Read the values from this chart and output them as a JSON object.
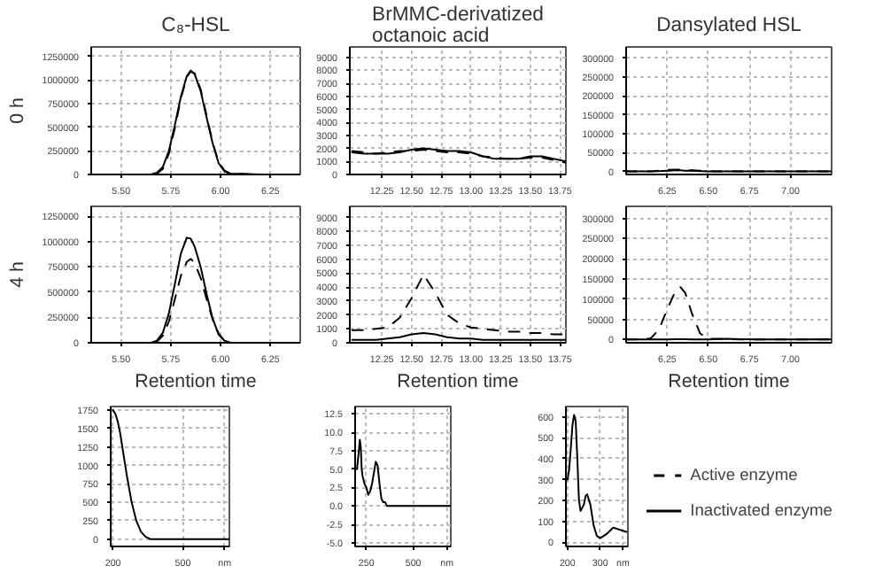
{
  "chart_data": [
    {
      "type": "line",
      "title": "C₈-HSL",
      "ylabel": "0 h",
      "xlim": [
        5.35,
        6.4
      ],
      "ylim": [
        0,
        1350000
      ],
      "xticks": [
        {
          "value": 5.5,
          "label": "5.50"
        },
        5.75,
        {
          "value": 6.0,
          "label": "6.00"
        },
        6.25
      ],
      "yticks": [
        0,
        250000,
        500000,
        750000,
        1000000,
        1250000
      ],
      "grid": true,
      "x": [
        5.35,
        5.5,
        5.65,
        5.68,
        5.71,
        5.74,
        5.77,
        5.8,
        5.83,
        5.85,
        5.87,
        5.9,
        5.93,
        5.96,
        5.99,
        6.02,
        6.05,
        6.2,
        6.4
      ],
      "series": [
        {
          "color": "#000000",
          "line_style": "dashed",
          "values": [
            0,
            0,
            0,
            10000,
            60000,
            220000,
            490000,
            800000,
            1030000,
            1090000,
            1070000,
            900000,
            620000,
            340000,
            130000,
            40000,
            10000,
            0,
            0
          ]
        },
        {
          "color": "#000000",
          "line_style": "solid",
          "values": [
            0,
            0,
            0,
            20000,
            80000,
            250000,
            520000,
            820000,
            1040000,
            1100000,
            1060000,
            880000,
            600000,
            330000,
            120000,
            30000,
            10000,
            0,
            0
          ]
        }
      ]
    },
    {
      "type": "line",
      "title": "BrMMC-derivatized octanoic acid",
      "xlim": [
        11.98,
        13.8
      ],
      "ylim": [
        0,
        9800
      ],
      "xticks": [
        12.25,
        {
          "value": 12.5,
          "label": "12.50"
        },
        12.75,
        {
          "value": 13.0,
          "label": "13.00"
        },
        13.25,
        {
          "value": 13.5,
          "label": "13.50"
        },
        13.75
      ],
      "yticks": [
        0,
        1000,
        2000,
        3000,
        4000,
        5000,
        6000,
        7000,
        8000,
        9000
      ],
      "grid": true,
      "x": [
        12.0,
        12.1,
        12.2,
        12.3,
        12.4,
        12.5,
        12.6,
        12.7,
        12.8,
        12.9,
        13.0,
        13.1,
        13.2,
        13.3,
        13.4,
        13.5,
        13.6,
        13.7,
        13.8
      ],
      "series": [
        {
          "color": "#000000",
          "line_style": "dashed",
          "values": [
            1800,
            1700,
            1600,
            1700,
            1800,
            1800,
            1900,
            1800,
            1700,
            1700,
            1600,
            1400,
            1300,
            1200,
            1200,
            1300,
            1300,
            1100,
            900
          ]
        },
        {
          "color": "#000000",
          "line_style": "solid",
          "values": [
            1700,
            1600,
            1600,
            1600,
            1700,
            1900,
            2000,
            1900,
            1800,
            1800,
            1700,
            1400,
            1200,
            1200,
            1200,
            1400,
            1400,
            1200,
            1000
          ]
        }
      ]
    },
    {
      "type": "line",
      "title": "Dansylated HSL",
      "xlim": [
        6.0,
        7.25
      ],
      "ylim": [
        -8000,
        330000
      ],
      "xticks": [
        6.25,
        {
          "value": 6.5,
          "label": "6.50"
        },
        6.75,
        {
          "value": 7.0,
          "label": "7.00"
        }
      ],
      "yticks": [
        0,
        50000,
        100000,
        150000,
        200000,
        250000,
        300000
      ],
      "grid": true,
      "x": [
        6.0,
        6.1,
        6.15,
        6.2,
        6.25,
        6.3,
        6.33,
        6.36,
        6.4,
        6.45,
        6.5,
        6.6,
        6.7,
        6.8,
        6.9,
        7.0,
        7.1,
        7.2,
        7.25
      ],
      "series": [
        {
          "color": "#000000",
          "line_style": "dashed",
          "values": [
            0,
            0,
            0,
            2000,
            4000,
            5000,
            5000,
            4000,
            3000,
            2000,
            0,
            0,
            0,
            0,
            0,
            0,
            0,
            0,
            0
          ]
        },
        {
          "color": "#000000",
          "line_style": "solid",
          "values": [
            0,
            0,
            0,
            1000,
            2000,
            3000,
            3000,
            2000,
            2000,
            1000,
            0,
            0,
            0,
            0,
            0,
            0,
            0,
            0,
            0
          ]
        }
      ]
    },
    {
      "type": "line",
      "ylabel": "4 h",
      "xlabel": "Retention time",
      "xlim": [
        5.35,
        6.4
      ],
      "ylim": [
        0,
        1350000
      ],
      "xticks": [
        {
          "value": 5.5,
          "label": "5.50"
        },
        5.75,
        {
          "value": 6.0,
          "label": "6.00"
        },
        6.25
      ],
      "yticks": [
        0,
        250000,
        500000,
        750000,
        1000000,
        1250000
      ],
      "grid": true,
      "x": [
        5.35,
        5.5,
        5.65,
        5.68,
        5.71,
        5.74,
        5.77,
        5.8,
        5.83,
        5.85,
        5.87,
        5.9,
        5.93,
        5.96,
        5.99,
        6.02,
        6.05,
        6.2,
        6.4
      ],
      "series": [
        {
          "color": "#000000",
          "line_style": "dashed",
          "values": [
            0,
            0,
            0,
            10000,
            70000,
            210000,
            430000,
            660000,
            800000,
            830000,
            790000,
            640000,
            430000,
            230000,
            90000,
            20000,
            0,
            0,
            0
          ]
        },
        {
          "color": "#000000",
          "line_style": "solid",
          "values": [
            0,
            0,
            0,
            20000,
            100000,
            290000,
            580000,
            880000,
            1040000,
            1030000,
            950000,
            750000,
            480000,
            240000,
            80000,
            20000,
            0,
            0,
            0
          ]
        }
      ]
    },
    {
      "type": "line",
      "xlabel": "Retention time",
      "xlim": [
        11.98,
        13.8
      ],
      "ylim": [
        0,
        9800
      ],
      "xticks": [
        12.25,
        {
          "value": 12.5,
          "label": "12.50"
        },
        12.75,
        {
          "value": 13.0,
          "label": "13.00"
        },
        13.25,
        {
          "value": 13.5,
          "label": "13.50"
        },
        13.75
      ],
      "yticks": [
        0,
        1000,
        2000,
        3000,
        4000,
        5000,
        6000,
        7000,
        8000,
        9000
      ],
      "grid": true,
      "x": [
        12.0,
        12.1,
        12.2,
        12.3,
        12.4,
        12.5,
        12.6,
        12.7,
        12.8,
        12.9,
        13.0,
        13.1,
        13.2,
        13.3,
        13.4,
        13.5,
        13.6,
        13.7,
        13.8
      ],
      "series": [
        {
          "color": "#000000",
          "line_style": "dashed",
          "values": [
            900,
            900,
            1000,
            1100,
            1800,
            3200,
            4900,
            3600,
            2000,
            1400,
            1100,
            1000,
            900,
            800,
            800,
            700,
            700,
            600,
            600
          ]
        },
        {
          "color": "#000000",
          "line_style": "solid",
          "values": [
            200,
            200,
            200,
            300,
            400,
            600,
            700,
            600,
            400,
            300,
            300,
            200,
            200,
            200,
            200,
            200,
            200,
            200,
            200
          ]
        }
      ]
    },
    {
      "type": "line",
      "xlabel": "Retention time",
      "legend": "bottom right",
      "xlim": [
        6.0,
        7.25
      ],
      "ylim": [
        -8000,
        330000
      ],
      "xticks": [
        6.25,
        {
          "value": 6.5,
          "label": "6.50"
        },
        6.75,
        {
          "value": 7.0,
          "label": "7.00"
        }
      ],
      "yticks": [
        0,
        50000,
        100000,
        150000,
        200000,
        250000,
        300000
      ],
      "grid": true,
      "x": [
        6.0,
        6.1,
        6.15,
        6.2,
        6.25,
        6.3,
        6.33,
        6.36,
        6.4,
        6.45,
        6.5,
        6.6,
        6.7,
        6.8,
        6.9,
        7.0,
        7.1,
        7.2,
        7.25
      ],
      "series": [
        {
          "name": "Active enzyme",
          "color": "#000000",
          "line_style": "dashed",
          "values": [
            0,
            0,
            3000,
            25000,
            75000,
            120000,
            130000,
            115000,
            65000,
            15000,
            2000,
            1000,
            0,
            0,
            0,
            0,
            0,
            0,
            0
          ]
        },
        {
          "name": "Inactivated enzyme",
          "color": "#000000",
          "line_style": "solid",
          "values": [
            0,
            0,
            0,
            0,
            0,
            1000,
            1000,
            1000,
            0,
            0,
            0,
            2000,
            1000,
            0,
            0,
            0,
            0,
            1000,
            0
          ]
        }
      ]
    },
    {
      "type": "line",
      "xlim": [
        190,
        700
      ],
      "ylim": [
        -100,
        1800
      ],
      "xticks": [
        200,
        500,
        {
          "value": 680,
          "label": "nm"
        }
      ],
      "yticks": [
        0,
        250,
        500,
        750,
        1000,
        1250,
        1500,
        1750
      ],
      "grid": true,
      "x": [
        200,
        210,
        220,
        230,
        240,
        250,
        260,
        280,
        300,
        320,
        340,
        360,
        400,
        500,
        600,
        700
      ],
      "series": [
        {
          "color": "#000000",
          "line_style": "solid",
          "values": [
            1750,
            1700,
            1600,
            1450,
            1250,
            1050,
            850,
            500,
            250,
            100,
            30,
            0,
            0,
            0,
            0,
            0
          ]
        }
      ]
    },
    {
      "type": "line",
      "xlim": [
        190,
        700
      ],
      "ylim": [
        -5.5,
        13.5
      ],
      "xticks": [
        250,
        500,
        {
          "value": 680,
          "label": "nm"
        }
      ],
      "yticks": [
        {
          "value": -5,
          "label": "-5.0"
        },
        -2.5,
        {
          "value": 0,
          "label": "0.0"
        },
        2.5,
        {
          "value": 5,
          "label": "5.0"
        },
        7.5,
        {
          "value": 10,
          "label": "10.0"
        },
        12.5
      ],
      "grid": true,
      "x": [
        200,
        210,
        215,
        220,
        225,
        230,
        240,
        250,
        260,
        270,
        280,
        290,
        300,
        310,
        320,
        330,
        340,
        350,
        360,
        400,
        500,
        600,
        700
      ],
      "series": [
        {
          "color": "#000000",
          "line_style": "solid",
          "values": [
            5,
            7.5,
            9,
            8,
            5,
            4,
            3,
            2.5,
            1.5,
            2,
            3,
            4.5,
            6,
            5.5,
            3,
            1,
            0.5,
            0.5,
            0,
            0,
            0,
            0,
            0
          ]
        }
      ]
    },
    {
      "type": "line",
      "xlim": [
        195,
        385
      ],
      "ylim": [
        -20,
        650
      ],
      "xticks": [
        200,
        300,
        {
          "value": 370,
          "label": "nm"
        }
      ],
      "yticks": [
        0,
        100,
        200,
        300,
        400,
        500,
        600
      ],
      "grid": true,
      "x": [
        200,
        205,
        210,
        215,
        220,
        225,
        230,
        235,
        240,
        250,
        255,
        260,
        270,
        280,
        290,
        300,
        320,
        340,
        360,
        380
      ],
      "series": [
        {
          "color": "#000000",
          "line_style": "solid",
          "values": [
            300,
            350,
            450,
            560,
            610,
            580,
            400,
            200,
            150,
            180,
            220,
            230,
            180,
            80,
            30,
            20,
            40,
            70,
            60,
            50
          ]
        }
      ]
    }
  ]
}
